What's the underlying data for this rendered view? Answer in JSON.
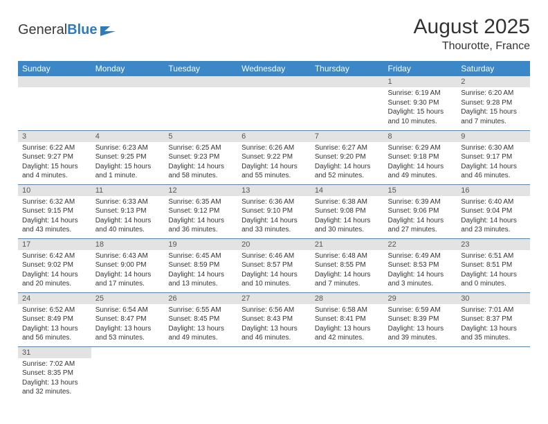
{
  "logo": {
    "word1": "General",
    "word2": "Blue"
  },
  "title": "August 2025",
  "location": "Thourotte, France",
  "colors": {
    "header_bg": "#3b87c8",
    "header_fg": "#ffffff",
    "daynum_bg": "#e3e3e3",
    "daynum_fg": "#555555",
    "border": "#3b87c8",
    "text": "#333333",
    "logo_blue": "#2f7bbf"
  },
  "dayHeaders": [
    "Sunday",
    "Monday",
    "Tuesday",
    "Wednesday",
    "Thursday",
    "Friday",
    "Saturday"
  ],
  "weeks": [
    [
      null,
      null,
      null,
      null,
      null,
      {
        "n": "1",
        "sr": "6:19 AM",
        "ss": "9:30 PM",
        "dl": "15 hours and 10 minutes."
      },
      {
        "n": "2",
        "sr": "6:20 AM",
        "ss": "9:28 PM",
        "dl": "15 hours and 7 minutes."
      }
    ],
    [
      {
        "n": "3",
        "sr": "6:22 AM",
        "ss": "9:27 PM",
        "dl": "15 hours and 4 minutes."
      },
      {
        "n": "4",
        "sr": "6:23 AM",
        "ss": "9:25 PM",
        "dl": "15 hours and 1 minute."
      },
      {
        "n": "5",
        "sr": "6:25 AM",
        "ss": "9:23 PM",
        "dl": "14 hours and 58 minutes."
      },
      {
        "n": "6",
        "sr": "6:26 AM",
        "ss": "9:22 PM",
        "dl": "14 hours and 55 minutes."
      },
      {
        "n": "7",
        "sr": "6:27 AM",
        "ss": "9:20 PM",
        "dl": "14 hours and 52 minutes."
      },
      {
        "n": "8",
        "sr": "6:29 AM",
        "ss": "9:18 PM",
        "dl": "14 hours and 49 minutes."
      },
      {
        "n": "9",
        "sr": "6:30 AM",
        "ss": "9:17 PM",
        "dl": "14 hours and 46 minutes."
      }
    ],
    [
      {
        "n": "10",
        "sr": "6:32 AM",
        "ss": "9:15 PM",
        "dl": "14 hours and 43 minutes."
      },
      {
        "n": "11",
        "sr": "6:33 AM",
        "ss": "9:13 PM",
        "dl": "14 hours and 40 minutes."
      },
      {
        "n": "12",
        "sr": "6:35 AM",
        "ss": "9:12 PM",
        "dl": "14 hours and 36 minutes."
      },
      {
        "n": "13",
        "sr": "6:36 AM",
        "ss": "9:10 PM",
        "dl": "14 hours and 33 minutes."
      },
      {
        "n": "14",
        "sr": "6:38 AM",
        "ss": "9:08 PM",
        "dl": "14 hours and 30 minutes."
      },
      {
        "n": "15",
        "sr": "6:39 AM",
        "ss": "9:06 PM",
        "dl": "14 hours and 27 minutes."
      },
      {
        "n": "16",
        "sr": "6:40 AM",
        "ss": "9:04 PM",
        "dl": "14 hours and 23 minutes."
      }
    ],
    [
      {
        "n": "17",
        "sr": "6:42 AM",
        "ss": "9:02 PM",
        "dl": "14 hours and 20 minutes."
      },
      {
        "n": "18",
        "sr": "6:43 AM",
        "ss": "9:00 PM",
        "dl": "14 hours and 17 minutes."
      },
      {
        "n": "19",
        "sr": "6:45 AM",
        "ss": "8:59 PM",
        "dl": "14 hours and 13 minutes."
      },
      {
        "n": "20",
        "sr": "6:46 AM",
        "ss": "8:57 PM",
        "dl": "14 hours and 10 minutes."
      },
      {
        "n": "21",
        "sr": "6:48 AM",
        "ss": "8:55 PM",
        "dl": "14 hours and 7 minutes."
      },
      {
        "n": "22",
        "sr": "6:49 AM",
        "ss": "8:53 PM",
        "dl": "14 hours and 3 minutes."
      },
      {
        "n": "23",
        "sr": "6:51 AM",
        "ss": "8:51 PM",
        "dl": "14 hours and 0 minutes."
      }
    ],
    [
      {
        "n": "24",
        "sr": "6:52 AM",
        "ss": "8:49 PM",
        "dl": "13 hours and 56 minutes."
      },
      {
        "n": "25",
        "sr": "6:54 AM",
        "ss": "8:47 PM",
        "dl": "13 hours and 53 minutes."
      },
      {
        "n": "26",
        "sr": "6:55 AM",
        "ss": "8:45 PM",
        "dl": "13 hours and 49 minutes."
      },
      {
        "n": "27",
        "sr": "6:56 AM",
        "ss": "8:43 PM",
        "dl": "13 hours and 46 minutes."
      },
      {
        "n": "28",
        "sr": "6:58 AM",
        "ss": "8:41 PM",
        "dl": "13 hours and 42 minutes."
      },
      {
        "n": "29",
        "sr": "6:59 AM",
        "ss": "8:39 PM",
        "dl": "13 hours and 39 minutes."
      },
      {
        "n": "30",
        "sr": "7:01 AM",
        "ss": "8:37 PM",
        "dl": "13 hours and 35 minutes."
      }
    ],
    [
      {
        "n": "31",
        "sr": "7:02 AM",
        "ss": "8:35 PM",
        "dl": "13 hours and 32 minutes."
      },
      null,
      null,
      null,
      null,
      null,
      null
    ]
  ],
  "labels": {
    "sunrise": "Sunrise:",
    "sunset": "Sunset:",
    "daylight": "Daylight:"
  }
}
